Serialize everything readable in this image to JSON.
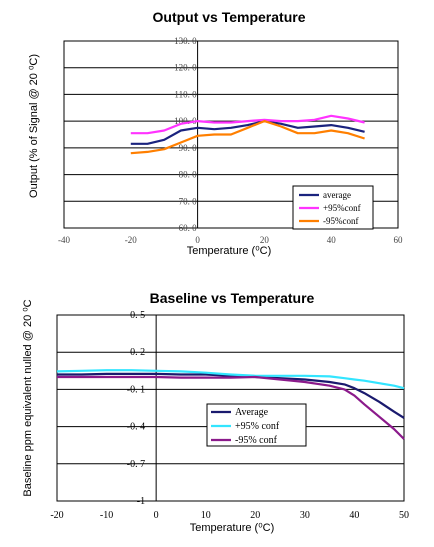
{
  "chart_data": [
    {
      "type": "line",
      "title": "Output vs Temperature",
      "xlabel": "Temperature (⁰C)",
      "ylabel": "Output (% of Signal @ 20 ⁰C)",
      "xlim": [
        -40,
        60
      ],
      "ylim": [
        60,
        130
      ],
      "x_ticks": [
        "-40",
        "-20",
        "0",
        "20",
        "40",
        "60"
      ],
      "y_ticks": [
        "130. 0",
        "120. 0",
        "110. 0",
        "100. 0",
        "90. 0",
        "80. 0",
        "70. 0",
        "60. 0"
      ],
      "x": [
        -20,
        -15,
        -10,
        -5,
        0,
        5,
        10,
        15,
        20,
        25,
        30,
        35,
        40,
        45,
        50
      ],
      "series": [
        {
          "name": "average",
          "color": "#1a237e",
          "values": [
            91.5,
            91.5,
            93,
            96.5,
            97.5,
            97,
            97.5,
            98.5,
            100,
            99,
            97.5,
            98,
            98.5,
            97.5,
            96
          ]
        },
        {
          "name": "+95%conf",
          "color": "#ff33ff",
          "values": [
            95.5,
            95.5,
            96.5,
            99,
            100,
            99.5,
            99.5,
            100,
            100.5,
            100,
            100,
            100.5,
            102,
            101,
            99.5
          ]
        },
        {
          "name": "-95%conf",
          "color": "#ff7f00",
          "values": [
            88,
            88.5,
            89.5,
            92,
            94.5,
            95,
            95,
            97.5,
            100,
            98,
            95.5,
            95.5,
            96.5,
            95.5,
            93.5
          ]
        }
      ],
      "legend": "lower-right",
      "grid": "horizontal"
    },
    {
      "type": "line",
      "title": "Baseline vs Temperature",
      "xlabel": "Temperature (⁰C)",
      "ylabel": "Baseline ppm equivalent nulled @ 20 ⁰C",
      "xlim": [
        -20,
        50
      ],
      "ylim": [
        -1,
        0.5
      ],
      "x_ticks": [
        "-20",
        "-10",
        "0",
        "10",
        "20",
        "30",
        "40",
        "50"
      ],
      "y_ticks": [
        "0. 5",
        "0. 2",
        "-0. 1",
        "-0. 4",
        "-0. 7",
        "-1"
      ],
      "x": [
        -20,
        -15,
        -10,
        -5,
        0,
        5,
        10,
        15,
        20,
        25,
        30,
        35,
        38,
        40,
        42,
        45,
        48,
        50
      ],
      "series": [
        {
          "name": "Average",
          "color": "#1a1a6e",
          "values": [
            0.02,
            0.02,
            0.025,
            0.025,
            0.025,
            0.02,
            0.02,
            0.01,
            0.0,
            -0.01,
            -0.02,
            -0.04,
            -0.06,
            -0.09,
            -0.13,
            -0.2,
            -0.28,
            -0.33
          ]
        },
        {
          "name": "+95% conf",
          "color": "#33e5ff",
          "values": [
            0.045,
            0.05,
            0.055,
            0.055,
            0.05,
            0.045,
            0.035,
            0.02,
            0.01,
            0.01,
            0.01,
            0.005,
            -0.01,
            -0.02,
            -0.03,
            -0.05,
            -0.07,
            -0.09
          ]
        },
        {
          "name": "-95% conf",
          "color": "#8b1a8b",
          "values": [
            0.0,
            0.0,
            0.0,
            0.0,
            0.0,
            -0.005,
            -0.005,
            -0.005,
            0.0,
            -0.02,
            -0.04,
            -0.07,
            -0.1,
            -0.15,
            -0.22,
            -0.32,
            -0.42,
            -0.5
          ]
        }
      ],
      "legend": "center-right",
      "grid": "horizontal"
    }
  ]
}
